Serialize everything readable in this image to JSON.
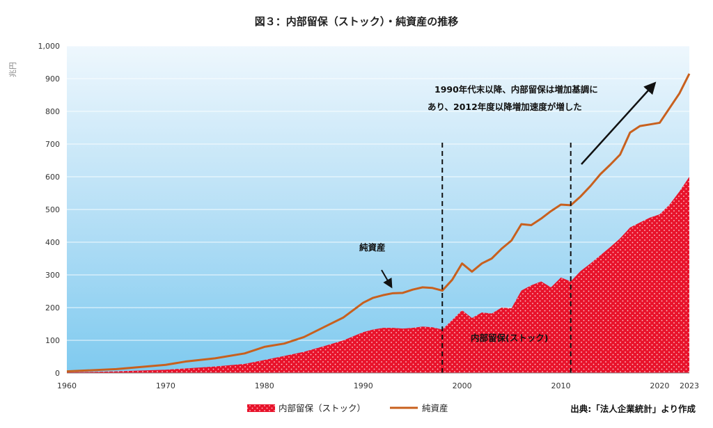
{
  "chart_data": {
    "type": "area",
    "title": "図３：内部留保（ストック）・純資産の推移",
    "ylabel": "兆円",
    "xlabel": "",
    "ylim": [
      0,
      1000
    ],
    "xlim": [
      1960,
      2023
    ],
    "yticks": [
      0,
      100,
      200,
      300,
      400,
      500,
      600,
      700,
      800,
      900,
      1000
    ],
    "ytick_labels": [
      "0",
      "100",
      "200",
      "300",
      "400",
      "500",
      "600",
      "700",
      "800",
      "900",
      "1,000"
    ],
    "xticks": [
      1960,
      1970,
      1980,
      1990,
      2000,
      2010,
      2020,
      2023
    ],
    "grid": true,
    "series": [
      {
        "name": "内部留保（ストック）",
        "style": "area",
        "color": "#e8132b",
        "x": [
          1960,
          1965,
          1970,
          1975,
          1978,
          1980,
          1982,
          1984,
          1986,
          1988,
          1990,
          1991,
          1992,
          1993,
          1994,
          1995,
          1996,
          1997,
          1998,
          1999,
          2000,
          2001,
          2002,
          2003,
          2004,
          2005,
          2006,
          2007,
          2008,
          2009,
          2010,
          2011,
          2012,
          2013,
          2014,
          2015,
          2016,
          2017,
          2018,
          2019,
          2020,
          2021,
          2022,
          2023
        ],
        "values": [
          2,
          5,
          10,
          20,
          28,
          40,
          52,
          65,
          82,
          100,
          125,
          133,
          138,
          138,
          136,
          138,
          142,
          140,
          133,
          162,
          192,
          168,
          185,
          182,
          200,
          198,
          252,
          268,
          280,
          262,
          292,
          280,
          312,
          335,
          360,
          385,
          412,
          445,
          460,
          475,
          485,
          515,
          555,
          600
        ]
      },
      {
        "name": "純資産",
        "style": "line",
        "color": "#c8601e",
        "x": [
          1960,
          1965,
          1970,
          1972,
          1975,
          1978,
          1980,
          1982,
          1984,
          1986,
          1988,
          1990,
          1991,
          1992,
          1993,
          1994,
          1995,
          1996,
          1997,
          1998,
          1999,
          2000,
          2001,
          2002,
          2003,
          2004,
          2005,
          2006,
          2007,
          2008,
          2009,
          2010,
          2011,
          2012,
          2013,
          2014,
          2015,
          2016,
          2017,
          2018,
          2019,
          2020,
          2021,
          2022,
          2023
        ],
        "values": [
          5,
          12,
          25,
          35,
          45,
          60,
          80,
          90,
          110,
          140,
          170,
          215,
          230,
          238,
          244,
          245,
          255,
          262,
          260,
          252,
          285,
          335,
          310,
          335,
          350,
          380,
          405,
          455,
          452,
          472,
          495,
          515,
          513,
          540,
          572,
          608,
          637,
          668,
          735,
          755,
          760,
          765,
          810,
          855,
          915
        ]
      }
    ],
    "vlines": [
      1998,
      2011
    ],
    "annotations": [
      {
        "text": "純資産"
      },
      {
        "text": "1990年代末以降、内部留保は増加基調に"
      },
      {
        "text": "あり、2012年度以降増加速度が増した"
      },
      {
        "text": "内部留保(ストック)"
      }
    ],
    "legend": {
      "position": "bottom",
      "items": [
        "内部留保（ストック）",
        "純資産"
      ]
    },
    "source": "出典:「法人企業統計」より作成"
  }
}
